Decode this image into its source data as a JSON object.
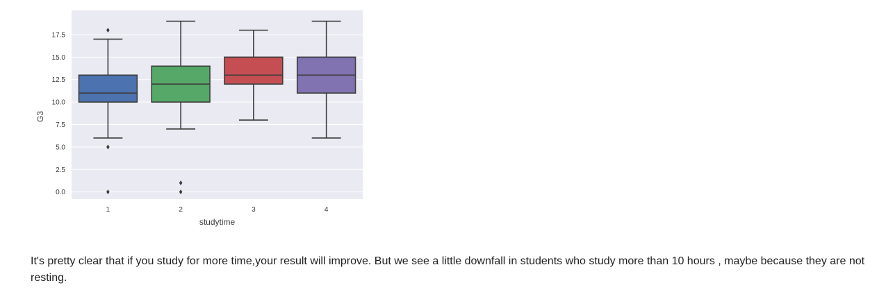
{
  "chart_data": {
    "type": "box",
    "xlabel": "studytime",
    "ylabel": "G3",
    "categories": [
      "1",
      "2",
      "3",
      "4"
    ],
    "ylim": [
      -0.8,
      20.2
    ],
    "yticks": [
      0.0,
      2.5,
      5.0,
      7.5,
      10.0,
      12.5,
      15.0,
      17.5
    ],
    "ytick_labels": [
      "0.0",
      "2.5",
      "5.0",
      "7.5",
      "10.0",
      "12.5",
      "15.0",
      "17.5"
    ],
    "grid": true,
    "background": "#eaeaf2",
    "boxes": [
      {
        "category": "1",
        "whisker_low": 6,
        "q1": 10,
        "median": 11,
        "q3": 13,
        "whisker_high": 17,
        "outliers": [
          18,
          5,
          0
        ],
        "color": "#4c72b0"
      },
      {
        "category": "2",
        "whisker_low": 7,
        "q1": 10,
        "median": 12,
        "q3": 14,
        "whisker_high": 19,
        "outliers": [
          1,
          0
        ],
        "color": "#55a868"
      },
      {
        "category": "3",
        "whisker_low": 8,
        "q1": 12,
        "median": 13,
        "q3": 15,
        "whisker_high": 18,
        "outliers": [],
        "color": "#c44e52"
      },
      {
        "category": "4",
        "whisker_low": 6,
        "q1": 11,
        "median": 13,
        "q3": 15,
        "whisker_high": 19,
        "outliers": [],
        "color": "#8172b2"
      }
    ],
    "line_color": "#3d3d3d"
  },
  "paragraph": "It's pretty clear that if you study for more time,your result will improve. But we see a little downfall in students who study more than 10 hours , maybe because they are not resting."
}
